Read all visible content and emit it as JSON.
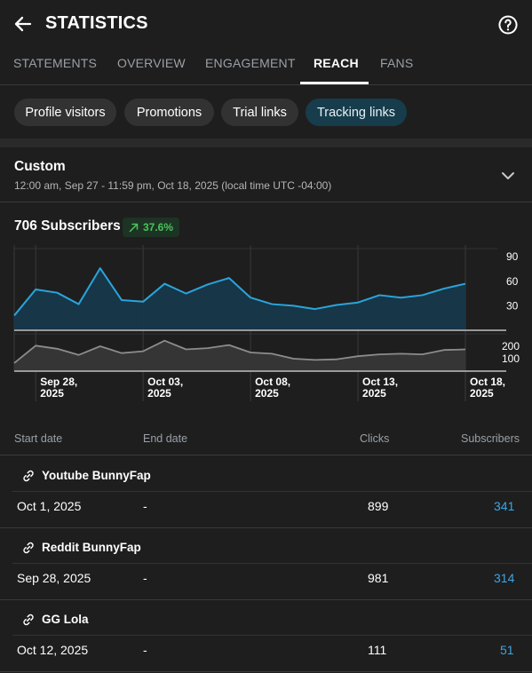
{
  "header": {
    "title": "STATISTICS"
  },
  "tabs": [
    {
      "label": "STATEMENTS"
    },
    {
      "label": "OVERVIEW"
    },
    {
      "label": "ENGAGEMENT"
    },
    {
      "label": "REACH"
    },
    {
      "label": "FANS"
    }
  ],
  "active_tab": "REACH",
  "chips": [
    {
      "label": "Profile visitors"
    },
    {
      "label": "Promotions"
    },
    {
      "label": "Trial links"
    },
    {
      "label": "Tracking links"
    }
  ],
  "active_chip": "Tracking links",
  "range": {
    "title": "Custom",
    "subtitle": "12:00 am, Sep 27 - 11:59 pm, Oct 18, 2025 (local time UTC -04:00)"
  },
  "summary": {
    "subscribers": "706 Subscribers",
    "change": "37.6%"
  },
  "colors": {
    "accent": "#3aa6e6",
    "positive": "#4cc25c",
    "active_chip": "#173c4c"
  },
  "chart_data": {
    "type": "line",
    "x_tick_labels": [
      [
        "Sep 28,",
        "2025"
      ],
      [
        "Oct 03,",
        "2025"
      ],
      [
        "Oct 08,",
        "2025"
      ],
      [
        "Oct 13,",
        "2025"
      ],
      [
        "Oct 18,",
        "2025"
      ]
    ],
    "x": [
      "Sep 27",
      "Sep 28",
      "Sep 29",
      "Sep 30",
      "Oct 1",
      "Oct 2",
      "Oct 3",
      "Oct 4",
      "Oct 5",
      "Oct 6",
      "Oct 7",
      "Oct 8",
      "Oct 9",
      "Oct 10",
      "Oct 11",
      "Oct 12",
      "Oct 13",
      "Oct 14",
      "Oct 15",
      "Oct 16",
      "Oct 17",
      "Oct 18"
    ],
    "series": [
      {
        "values": [
          18,
          50,
          46,
          32,
          76,
          37,
          35,
          57,
          45,
          56,
          64,
          40,
          32,
          30,
          26,
          31,
          34,
          43,
          40,
          43,
          51,
          57
        ],
        "ylim": [
          0,
          100
        ],
        "yticks": [
          "90",
          "60",
          "30"
        ]
      },
      {
        "values": [
          65,
          205,
          180,
          130,
          200,
          145,
          160,
          245,
          175,
          185,
          210,
          150,
          140,
          100,
          90,
          95,
          120,
          135,
          140,
          135,
          170,
          175
        ],
        "ylim": [
          0,
          300
        ],
        "yticks": [
          "200",
          "100"
        ]
      }
    ]
  },
  "table": {
    "headers": {
      "start": "Start date",
      "end": "End date",
      "clicks": "Clicks",
      "subscribers": "Subscribers"
    },
    "rows": [
      {
        "name": "Youtube BunnyFap",
        "start": "Oct 1, 2025",
        "end": "-",
        "clicks": "899",
        "subscribers": "341"
      },
      {
        "name": "Reddit BunnyFap",
        "start": "Sep 28, 2025",
        "end": "-",
        "clicks": "981",
        "subscribers": "314"
      },
      {
        "name": "GG Lola",
        "start": "Oct 12, 2025",
        "end": "-",
        "clicks": "111",
        "subscribers": "51"
      }
    ]
  }
}
